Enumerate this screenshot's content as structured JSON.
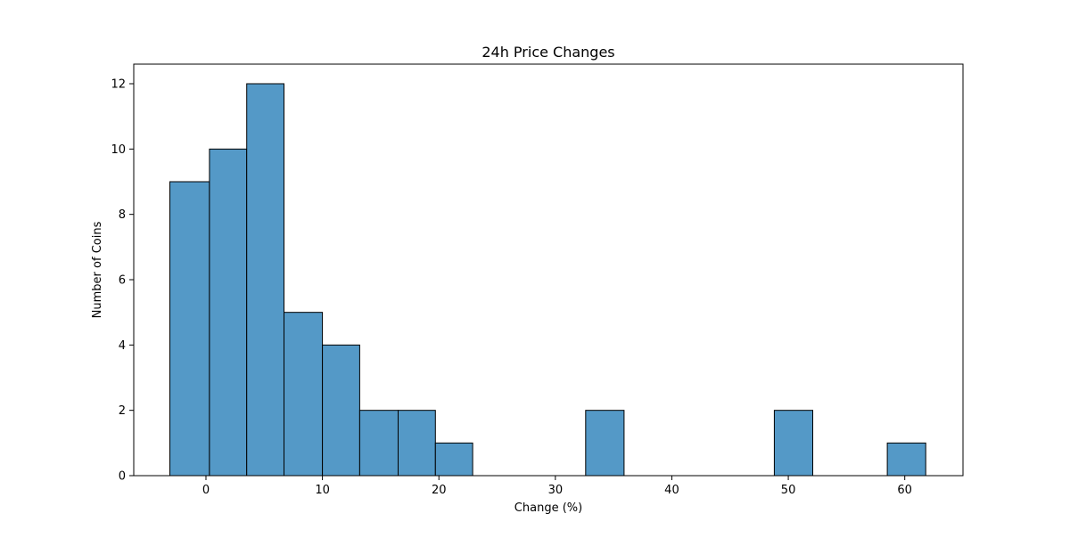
{
  "chart_data": {
    "type": "bar",
    "title": "24h Price Changes",
    "xlabel": "Change (%)",
    "ylabel": "Number of Coins",
    "xlim": [
      -6.2,
      65.0
    ],
    "ylim": [
      0,
      12.6
    ],
    "xticks": [
      0,
      10,
      20,
      30,
      40,
      50,
      60
    ],
    "yticks": [
      0,
      2,
      4,
      6,
      8,
      10,
      12
    ],
    "bins": [
      {
        "x0": -3.1,
        "x1": 0.3,
        "count": 9
      },
      {
        "x0": 0.3,
        "x1": 3.5,
        "count": 10
      },
      {
        "x0": 3.5,
        "x1": 6.7,
        "count": 12
      },
      {
        "x0": 6.7,
        "x1": 10.0,
        "count": 5
      },
      {
        "x0": 10.0,
        "x1": 13.2,
        "count": 4
      },
      {
        "x0": 13.2,
        "x1": 16.5,
        "count": 2
      },
      {
        "x0": 16.5,
        "x1": 19.7,
        "count": 2
      },
      {
        "x0": 19.7,
        "x1": 22.9,
        "count": 1
      },
      {
        "x0": 22.9,
        "x1": 26.2,
        "count": 0
      },
      {
        "x0": 26.2,
        "x1": 29.4,
        "count": 0
      },
      {
        "x0": 29.4,
        "x1": 32.6,
        "count": 0
      },
      {
        "x0": 32.6,
        "x1": 35.9,
        "count": 2
      },
      {
        "x0": 35.9,
        "x1": 39.1,
        "count": 0
      },
      {
        "x0": 39.1,
        "x1": 42.3,
        "count": 0
      },
      {
        "x0": 42.3,
        "x1": 45.6,
        "count": 0
      },
      {
        "x0": 45.6,
        "x1": 48.8,
        "count": 0
      },
      {
        "x0": 48.8,
        "x1": 52.1,
        "count": 2
      },
      {
        "x0": 52.1,
        "x1": 55.3,
        "count": 0
      },
      {
        "x0": 55.3,
        "x1": 58.5,
        "count": 0
      },
      {
        "x0": 58.5,
        "x1": 61.8,
        "count": 1
      }
    ],
    "grid": false,
    "bar_color": "#5499c7",
    "edge_color": "#000000"
  }
}
